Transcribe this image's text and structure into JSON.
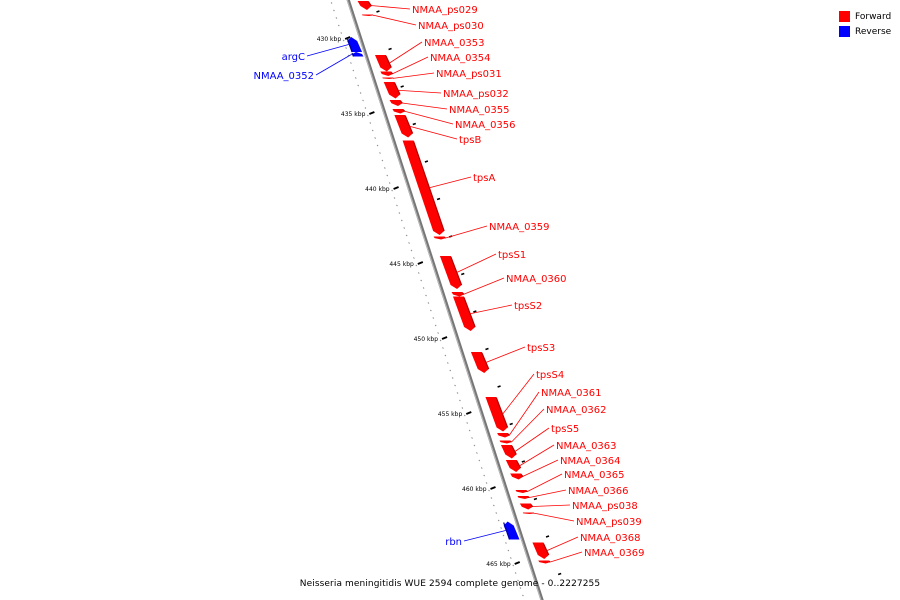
{
  "legend": {
    "forward_label": "Forward",
    "forward_color": "#ff0000",
    "reverse_label": "Reverse",
    "reverse_color": "#0000ff"
  },
  "caption": "Neisseria meningitidis WUE 2594 complete genome - 0..2227255",
  "ticks": [
    {
      "kbp": 430,
      "label": "430 kbp"
    },
    {
      "kbp": 435,
      "label": "435 kbp"
    },
    {
      "kbp": 440,
      "label": "440 kbp"
    },
    {
      "kbp": 445,
      "label": "445 kbp"
    },
    {
      "kbp": 450,
      "label": "450 kbp"
    },
    {
      "kbp": 455,
      "label": "455 kbp"
    },
    {
      "kbp": 460,
      "label": "460 kbp"
    },
    {
      "kbp": 465,
      "label": "465 kbp"
    }
  ],
  "features": [
    {
      "name": "NMAA_ps029",
      "strand": "forward",
      "start": 427.4,
      "end": 428.0
    },
    {
      "name": "NMAA_ps030",
      "strand": "forward",
      "start": 428.3,
      "end": 428.4
    },
    {
      "name": "NMAA_0353",
      "strand": "forward",
      "start": 431.0,
      "end": 432.1
    },
    {
      "name": "NMAA_0354",
      "strand": "forward",
      "start": 432.1,
      "end": 432.4
    },
    {
      "name": "NMAA_ps031",
      "strand": "forward",
      "start": 432.5,
      "end": 432.6
    },
    {
      "name": "NMAA_ps032",
      "strand": "forward",
      "start": 432.8,
      "end": 433.9
    },
    {
      "name": "NMAA_0355",
      "strand": "forward",
      "start": 434.0,
      "end": 434.4
    },
    {
      "name": "NMAA_0356",
      "strand": "forward",
      "start": 434.6,
      "end": 434.9
    },
    {
      "name": "tpsB",
      "strand": "forward",
      "start": 435.0,
      "end": 436.5
    },
    {
      "name": "tpsA",
      "strand": "forward",
      "start": 436.7,
      "end": 443.0
    },
    {
      "name": "NMAA_0359",
      "strand": "forward",
      "start": 443.1,
      "end": 443.3
    },
    {
      "name": "tpsS1",
      "strand": "forward",
      "start": 444.4,
      "end": 446.6
    },
    {
      "name": "NMAA_0360",
      "strand": "forward",
      "start": 446.8,
      "end": 447.1
    },
    {
      "name": "tpsS2",
      "strand": "forward",
      "start": 447.1,
      "end": 449.4
    },
    {
      "name": "tpsS3",
      "strand": "forward",
      "start": 450.8,
      "end": 452.2
    },
    {
      "name": "tpsS4",
      "strand": "forward",
      "start": 453.8,
      "end": 456.1
    },
    {
      "name": "NMAA_0361",
      "strand": "forward",
      "start": 456.2,
      "end": 456.5
    },
    {
      "name": "NMAA_0362",
      "strand": "forward",
      "start": 456.7,
      "end": 456.9
    },
    {
      "name": "tpsS5",
      "strand": "forward",
      "start": 457.0,
      "end": 457.9
    },
    {
      "name": "NMAA_0363",
      "strand": "forward",
      "start": 458.0,
      "end": 458.8
    },
    {
      "name": "NMAA_0364",
      "strand": "forward",
      "start": 458.9,
      "end": 459.3
    },
    {
      "name": "NMAA_0365",
      "strand": "forward",
      "start": 460.0,
      "end": 460.2
    },
    {
      "name": "NMAA_0366",
      "strand": "forward",
      "start": 460.4,
      "end": 460.6
    },
    {
      "name": "NMAA_ps038",
      "strand": "forward",
      "start": 460.9,
      "end": 461.3
    },
    {
      "name": "NMAA_ps039",
      "strand": "forward",
      "start": 461.5,
      "end": 461.6
    },
    {
      "name": "NMAA_0368",
      "strand": "forward",
      "start": 463.5,
      "end": 464.6
    },
    {
      "name": "NMAA_0369",
      "strand": "forward",
      "start": 464.7,
      "end": 464.9
    },
    {
      "name": "argC",
      "strand": "reverse",
      "start": 429.8,
      "end": 430.8
    },
    {
      "name": "NMAA_0352",
      "strand": "reverse",
      "start": 430.8,
      "end": 431.1
    },
    {
      "name": "rbn",
      "strand": "reverse",
      "start": 462.1,
      "end": 463.3
    }
  ]
}
